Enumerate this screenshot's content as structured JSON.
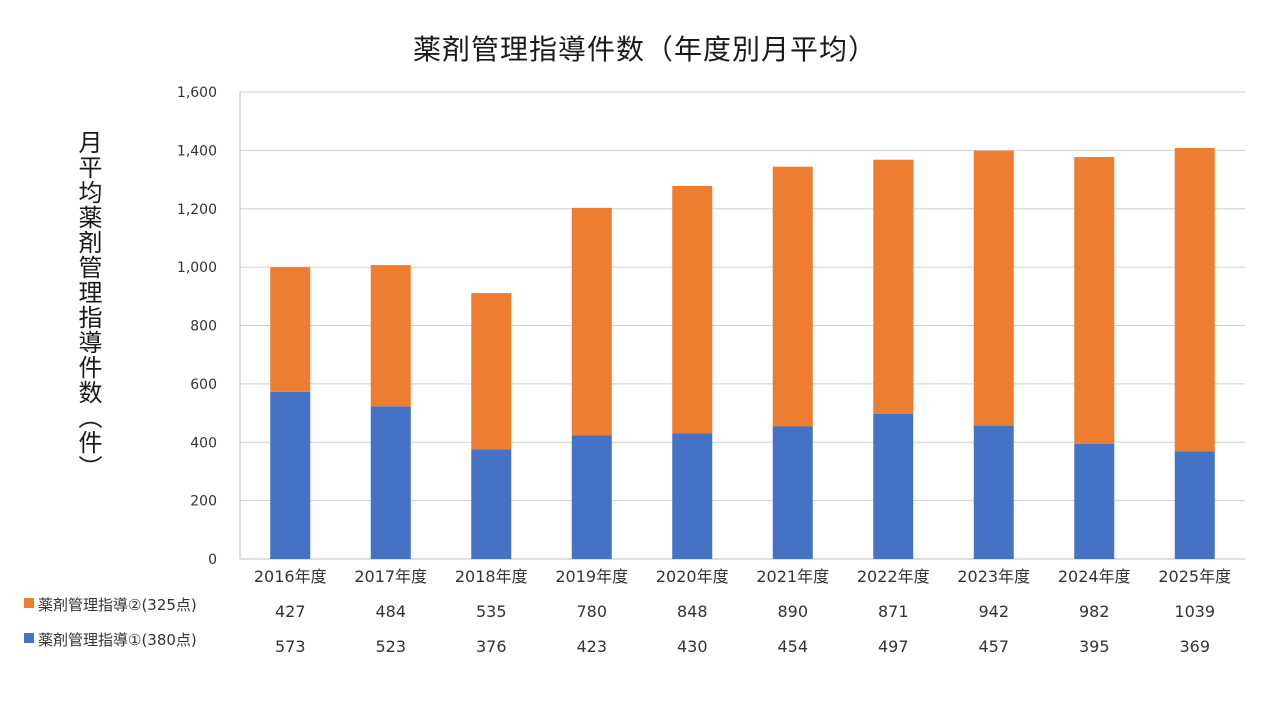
{
  "chart_data": {
    "type": "bar",
    "stacked": true,
    "title": "薬剤管理指導件数（年度別月平均）",
    "ylabel": "月平均薬剤管理指導件数（件）",
    "xlabel": "",
    "ylim": [
      0,
      1600
    ],
    "yticks": [
      "0",
      "200",
      "400",
      "600",
      "800",
      "1,000",
      "1,200",
      "1,400",
      "1,600"
    ],
    "ytick_values": [
      0,
      200,
      400,
      600,
      800,
      1000,
      1200,
      1400,
      1600
    ],
    "grid": true,
    "legend": "data-table-below",
    "categories": [
      "2016年度",
      "2017年度",
      "2018年度",
      "2019年度",
      "2020年度",
      "2021年度",
      "2022年度",
      "2023年度",
      "2024年度",
      "2025年度"
    ],
    "series": [
      {
        "name": "薬剤管理指導①(380点)",
        "color": "#4472C4",
        "values": [
          573,
          523,
          376,
          423,
          430,
          454,
          497,
          457,
          395,
          369
        ]
      },
      {
        "name": "薬剤管理指導②(325点)",
        "color": "#ED7D31",
        "values": [
          427,
          484,
          535,
          780,
          848,
          890,
          871,
          942,
          982,
          1039
        ]
      }
    ],
    "table_row_order": [
      1,
      0
    ]
  }
}
